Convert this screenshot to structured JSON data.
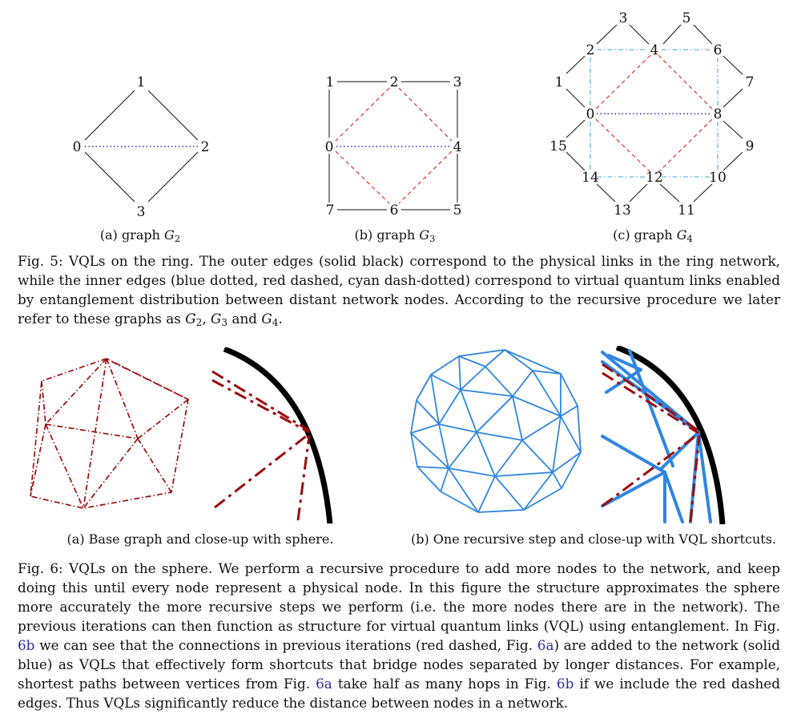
{
  "fig5": {
    "graphs": [
      {
        "nodes": [
          "0",
          "1",
          "2",
          "3"
        ],
        "caption_prefix": "(a) graph ",
        "caption_var": "G",
        "caption_sub": "2"
      },
      {
        "nodes": [
          "0",
          "1",
          "2",
          "3",
          "4",
          "5",
          "6",
          "7"
        ],
        "caption_prefix": "(b) graph ",
        "caption_var": "G",
        "caption_sub": "3"
      },
      {
        "nodes": [
          "0",
          "1",
          "2",
          "3",
          "4",
          "5",
          "6",
          "7",
          "8",
          "9",
          "10",
          "11",
          "12",
          "13",
          "14",
          "15"
        ],
        "caption_prefix": "(c) graph ",
        "caption_var": "G",
        "caption_sub": "4"
      }
    ],
    "caption": {
      "label": "Fig. 5:",
      "text": "VQLs on the ring. The outer edges (solid black) correspond to the physical links in the ring network, while the inner edges (blue dotted, red dashed, cyan dash-dotted) correspond to virtual quantum links enabled by entanglement distribution between distant network nodes. According to the recursive procedure we later refer to these graphs as",
      "g2": "G",
      "g2_sub": "2",
      "sep1": ",",
      "g3": "G",
      "g3_sub": "3",
      "sep2": "and",
      "g4": "G",
      "g4_sub": "4",
      "end": "."
    }
  },
  "fig6": {
    "subcaptions": [
      "(a) Base graph and close-up with sphere.",
      "(b) One recursive step and close-up with VQL shortcuts."
    ],
    "caption": {
      "label": "Fig. 6:",
      "p1": "VQLs on the sphere. We perform a recursive procedure to add more nodes to the network, and keep doing this until every node represent a physical node. In this figure the structure approximates the sphere more accurately the more recursive steps we perform (i.e. the more nodes there are in the network). The previous iterations can then function as structure for virtual quantum links (VQL) using entanglement. In Fig.",
      "ref1": "6b",
      "p2": "we can see that the connections in previous iterations (red dashed, Fig.",
      "ref2": "6a",
      "p3": ") are added to the network (solid blue) as VQLs that effectively form shortcuts that bridge nodes separated by longer distances. For example, shortest paths between vertices from Fig.",
      "ref3": "6a",
      "p4": "take half as many hops in Fig.",
      "ref4": "6b",
      "p5": "if we include the red dashed edges. Thus VQLs significantly reduce the distance between nodes in a network."
    }
  },
  "colors": {
    "physical": "#111111",
    "vql_blue": "#2b2bd0",
    "vql_red": "#e02020",
    "vql_cyan": "#3fa9d6",
    "dark_red": "#9b0d0d",
    "sphere_blue": "#2f86e0"
  }
}
